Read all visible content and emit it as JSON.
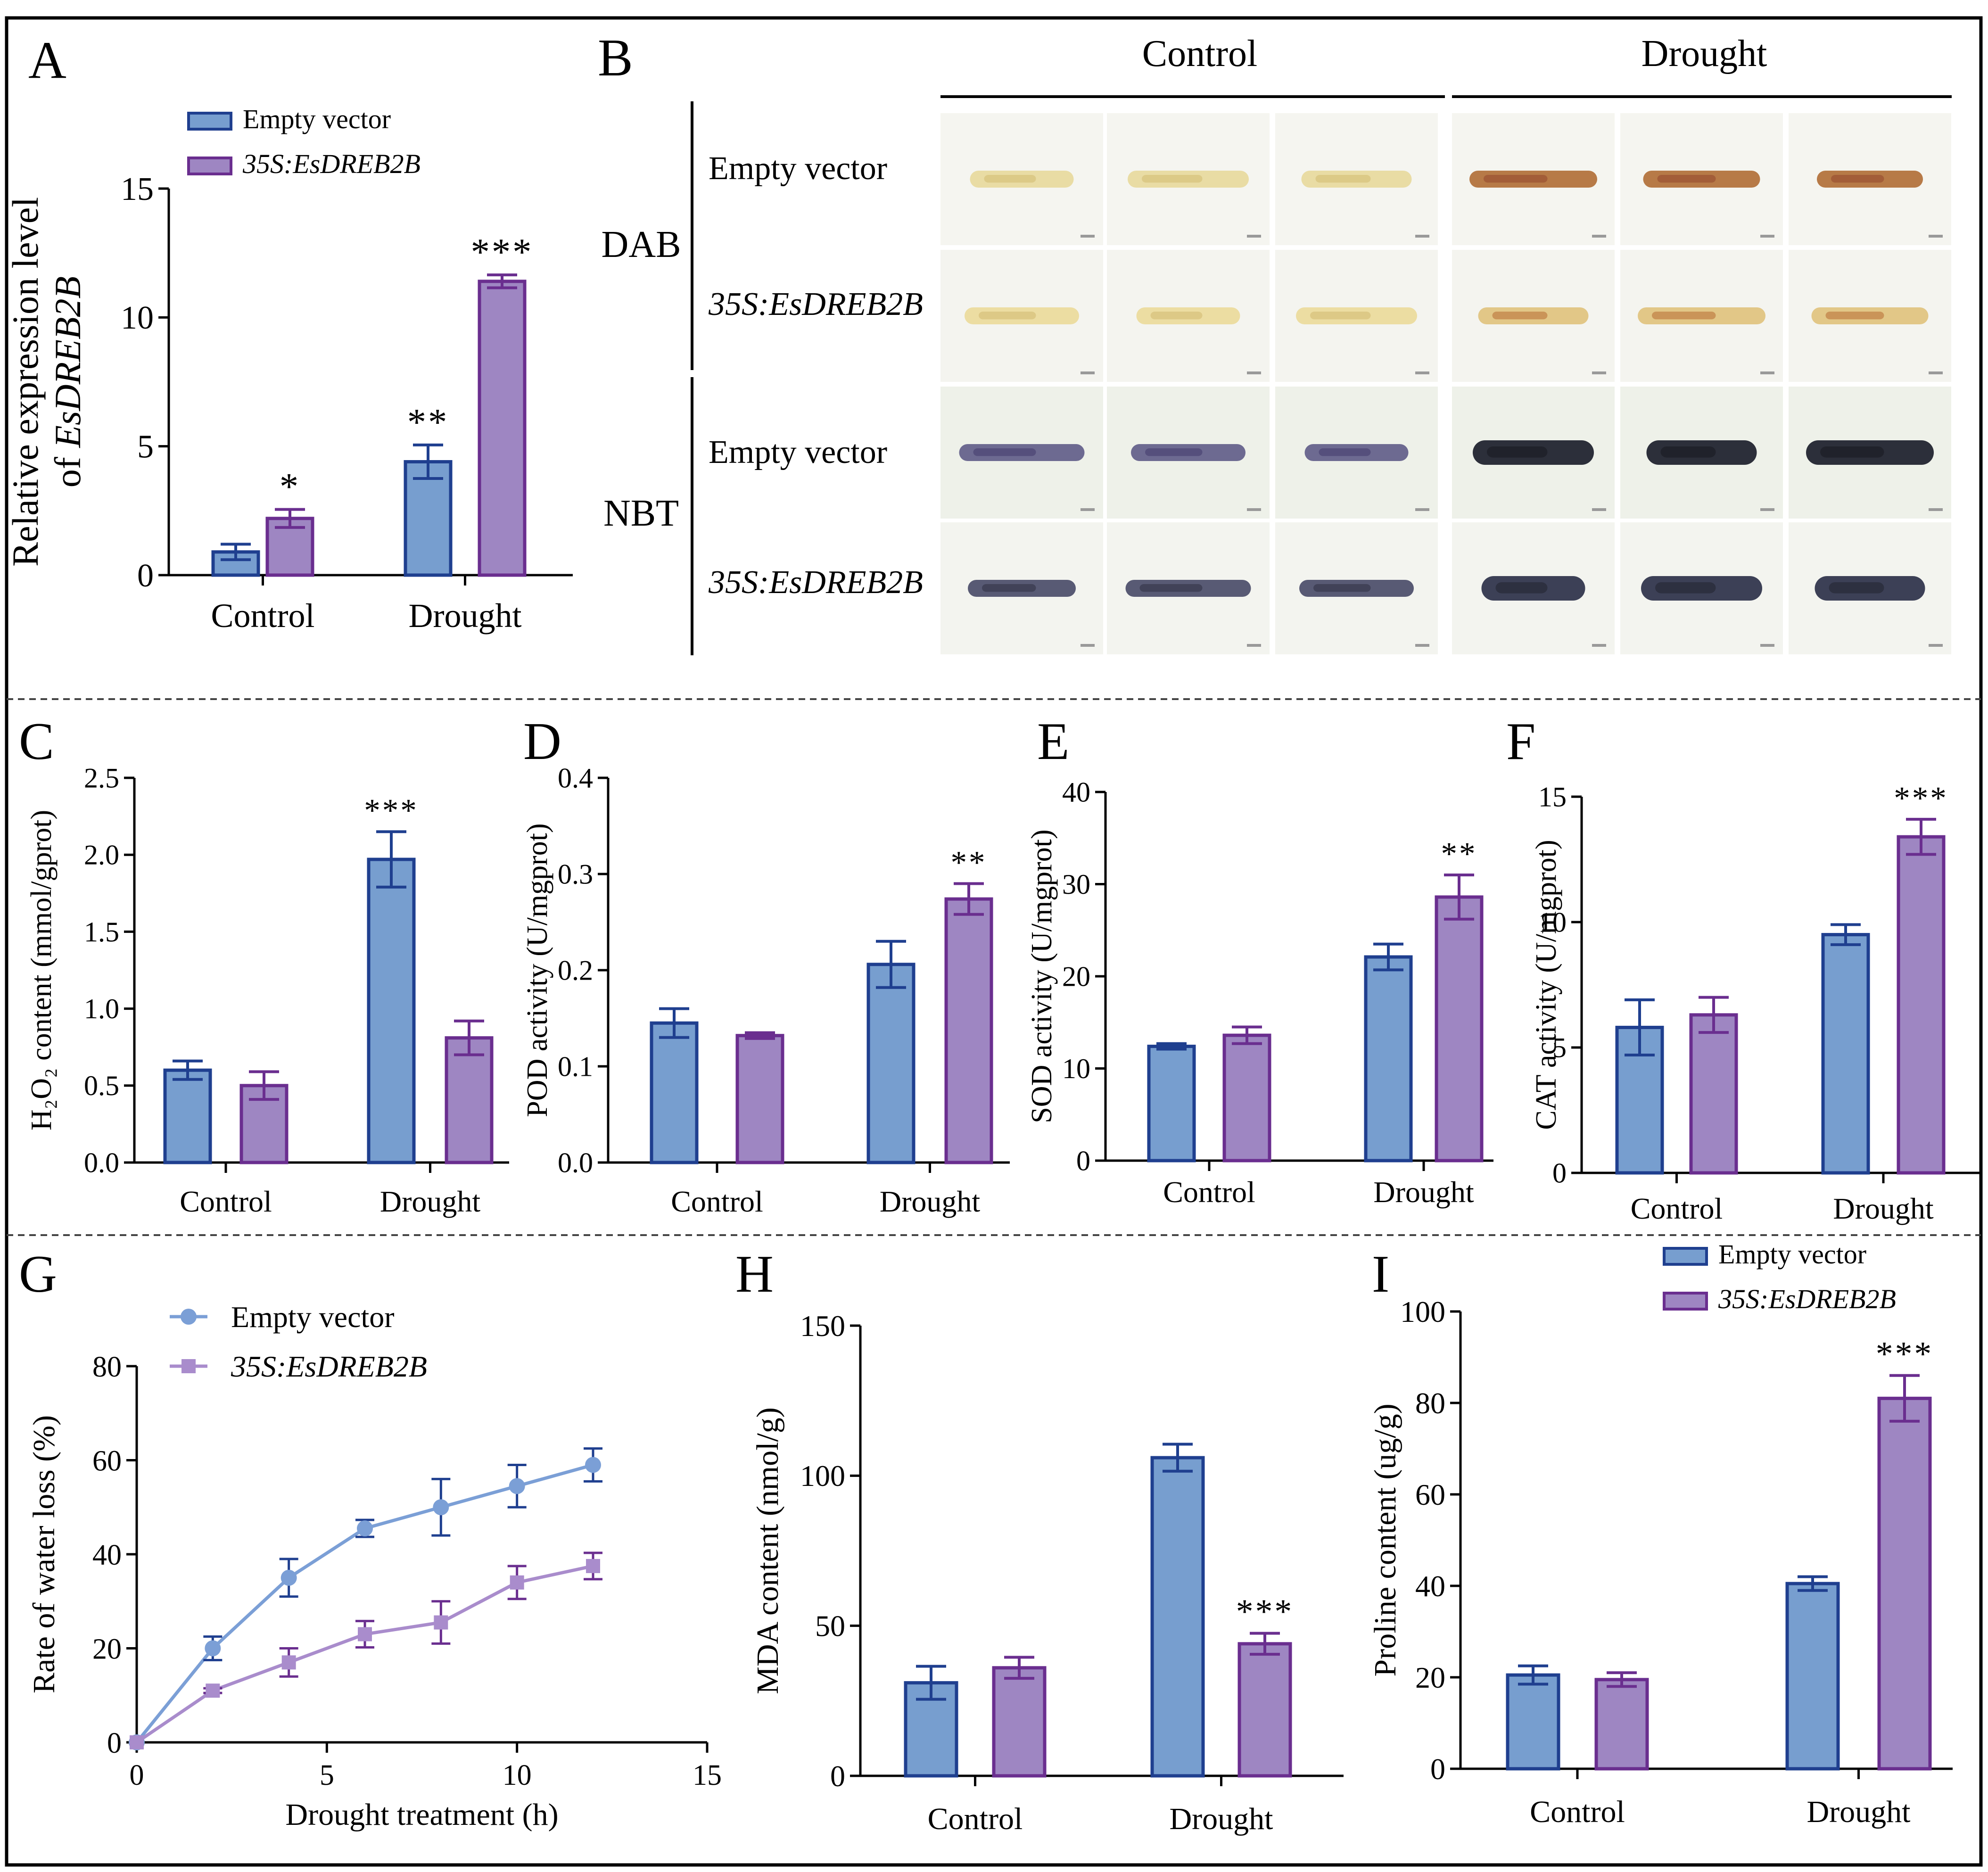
{
  "colors": {
    "empty_fill": "#779ecf",
    "empty_stroke": "#1f3f8f",
    "over_fill": "#9e86c2",
    "over_stroke": "#6a2e8f",
    "line_empty": "#7b9fd6",
    "line_over": "#a98ccc",
    "axis": "#000000",
    "dash": "#444444"
  },
  "legend": {
    "empty": "Empty vector",
    "over": "35S:EsDREB2B"
  },
  "panel_b": {
    "letter": "B",
    "col_headers": [
      "Control",
      "Drought"
    ],
    "stains": [
      "DAB",
      "NBT"
    ],
    "row_labels": [
      "Empty vector",
      "35S:EsDREB2B",
      "Empty vector",
      "35S:EsDREB2B"
    ]
  },
  "chart_data": [
    {
      "id": "A",
      "type": "bar",
      "title": "",
      "xlabel": "",
      "ylabel": [
        "Relative expression level",
        "of EsDREB2B"
      ],
      "ylim": [
        0,
        15
      ],
      "yticks": [
        0,
        5,
        10,
        15
      ],
      "categories": [
        "Control",
        "Drought"
      ],
      "series": [
        {
          "name": "Empty vector",
          "values": [
            0.9,
            4.4
          ],
          "errors": [
            0.3,
            0.65
          ]
        },
        {
          "name": "35S:EsDREB2B",
          "values": [
            2.2,
            11.4
          ],
          "errors": [
            0.35,
            0.25
          ]
        }
      ],
      "annotations": [
        {
          "series": 1,
          "category": 0,
          "text": "*"
        },
        {
          "series": 0,
          "category": 1,
          "text": "**"
        },
        {
          "series": 1,
          "category": 1,
          "text": "***"
        }
      ],
      "legend": "top-left"
    },
    {
      "id": "C",
      "type": "bar",
      "title": "",
      "xlabel": "",
      "ylabel": "H₂O₂ content (mmol/gprot)",
      "ylim": [
        0,
        2.5
      ],
      "yticks": [
        0,
        0.5,
        1.0,
        1.5,
        2.0,
        2.5
      ],
      "ytick_labels": [
        "0.0",
        "0.5",
        "1.0",
        "1.5",
        "2.0",
        "2.5"
      ],
      "categories": [
        "Control",
        "Drought"
      ],
      "series": [
        {
          "name": "Empty vector",
          "values": [
            0.6,
            1.97
          ],
          "errors": [
            0.06,
            0.18
          ]
        },
        {
          "name": "35S:EsDREB2B",
          "values": [
            0.5,
            0.81
          ],
          "errors": [
            0.09,
            0.11
          ]
        }
      ],
      "annotations": [
        {
          "series": 0,
          "category": 1,
          "text": "***"
        }
      ]
    },
    {
      "id": "D",
      "type": "bar",
      "title": "",
      "xlabel": "",
      "ylabel": "POD activity (U/mgprot)",
      "ylim": [
        0,
        0.4
      ],
      "yticks": [
        0,
        0.1,
        0.2,
        0.3,
        0.4
      ],
      "ytick_labels": [
        "0.0",
        "0.1",
        "0.2",
        "0.3",
        "0.4"
      ],
      "categories": [
        "Control",
        "Drought"
      ],
      "series": [
        {
          "name": "Empty vector",
          "values": [
            0.145,
            0.206
          ],
          "errors": [
            0.015,
            0.024
          ]
        },
        {
          "name": "35S:EsDREB2B",
          "values": [
            0.132,
            0.274
          ],
          "errors": [
            0.003,
            0.016
          ]
        }
      ],
      "annotations": [
        {
          "series": 1,
          "category": 1,
          "text": "**"
        }
      ]
    },
    {
      "id": "E",
      "type": "bar",
      "title": "",
      "xlabel": "",
      "ylabel": "SOD activity (U/mgprot)",
      "ylim": [
        0,
        40
      ],
      "yticks": [
        0,
        10,
        20,
        30,
        40
      ],
      "categories": [
        "Control",
        "Drought"
      ],
      "series": [
        {
          "name": "Empty vector",
          "values": [
            12.4,
            22.1
          ],
          "errors": [
            0.3,
            1.4
          ]
        },
        {
          "name": "35S:EsDREB2B",
          "values": [
            13.6,
            28.6
          ],
          "errors": [
            0.9,
            2.4
          ]
        }
      ],
      "annotations": [
        {
          "series": 1,
          "category": 1,
          "text": "**"
        }
      ]
    },
    {
      "id": "F",
      "type": "bar",
      "title": "",
      "xlabel": "",
      "ylabel": "CAT activity (U/mgprot)",
      "ylim": [
        0,
        15
      ],
      "yticks": [
        0,
        5,
        10,
        15
      ],
      "categories": [
        "Control",
        "Drought"
      ],
      "series": [
        {
          "name": "Empty vector",
          "values": [
            5.8,
            9.5
          ],
          "errors": [
            1.1,
            0.4
          ]
        },
        {
          "name": "35S:EsDREB2B",
          "values": [
            6.3,
            13.4
          ],
          "errors": [
            0.7,
            0.7
          ]
        }
      ],
      "annotations": [
        {
          "series": 1,
          "category": 1,
          "text": "***"
        }
      ]
    },
    {
      "id": "G",
      "type": "line",
      "title": "",
      "xlabel": "Drought treatment (h)",
      "ylabel": "Rate of water loss (%)",
      "xlim": [
        0,
        15
      ],
      "xticks": [
        0,
        5,
        10,
        15
      ],
      "ylim": [
        0,
        80
      ],
      "yticks": [
        0,
        20,
        40,
        60,
        80
      ],
      "x": [
        0,
        2,
        4,
        6,
        8,
        10,
        12
      ],
      "series": [
        {
          "name": "Empty vector",
          "marker": "circle",
          "values": [
            0,
            20,
            35,
            45.5,
            50,
            54.5,
            59
          ],
          "errors": [
            0,
            2.5,
            4,
            1.8,
            6,
            4.5,
            3.5
          ]
        },
        {
          "name": "35S:EsDREB2B",
          "marker": "square",
          "values": [
            0,
            11,
            17,
            23,
            25.5,
            34,
            37.5
          ],
          "errors": [
            0,
            0.5,
            3,
            2.8,
            4.5,
            3.5,
            2.8
          ]
        }
      ],
      "legend": "top-left"
    },
    {
      "id": "H",
      "type": "bar",
      "title": "",
      "xlabel": "",
      "ylabel": "MDA content (nmol/g)",
      "ylim": [
        0,
        150
      ],
      "yticks": [
        0,
        50,
        100,
        150
      ],
      "categories": [
        "Control",
        "Drought"
      ],
      "series": [
        {
          "name": "Empty vector",
          "values": [
            31,
            106
          ],
          "errors": [
            5.5,
            4.5
          ]
        },
        {
          "name": "35S:EsDREB2B",
          "values": [
            36,
            44
          ],
          "errors": [
            3.5,
            3.5
          ]
        }
      ],
      "annotations": [
        {
          "series": 1,
          "category": 1,
          "text": "***"
        }
      ]
    },
    {
      "id": "I",
      "type": "bar",
      "title": "",
      "xlabel": "",
      "ylabel": "Proline content (ug/g)",
      "ylim": [
        0,
        100
      ],
      "yticks": [
        0,
        20,
        40,
        60,
        80,
        100
      ],
      "categories": [
        "Control",
        "Drought"
      ],
      "series": [
        {
          "name": "Empty vector",
          "values": [
            20.5,
            40.5
          ],
          "errors": [
            2,
            1.5
          ]
        },
        {
          "name": "35S:EsDREB2B",
          "values": [
            19.5,
            81
          ],
          "errors": [
            1.5,
            5
          ]
        }
      ],
      "annotations": [
        {
          "series": 1,
          "category": 1,
          "text": "***"
        }
      ],
      "legend": "top-right"
    }
  ]
}
